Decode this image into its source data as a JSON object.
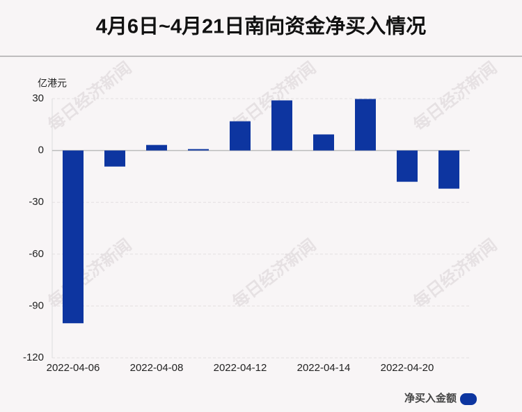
{
  "chart_data": {
    "type": "bar",
    "title": "4月6日~4月21日南向资金净买入情况",
    "y_label": "亿港元",
    "watermark": "每日经济新闻",
    "categories": [
      "2022-04-06",
      null,
      "2022-04-08",
      null,
      "2022-04-12",
      null,
      "2022-04-14",
      null,
      "2022-04-20",
      null
    ],
    "series": [
      {
        "name": "净买入金额",
        "color": "#0d35a0",
        "values": [
          -100,
          -9.3,
          3.2,
          0.8,
          16.9,
          29,
          9.3,
          29.8,
          -18.1,
          -22.1
        ]
      }
    ],
    "ylim": [
      -120,
      30
    ],
    "yticks": [
      30,
      0,
      -30,
      -60,
      -90,
      -120
    ],
    "grid": true,
    "legend": "bottom-right"
  }
}
